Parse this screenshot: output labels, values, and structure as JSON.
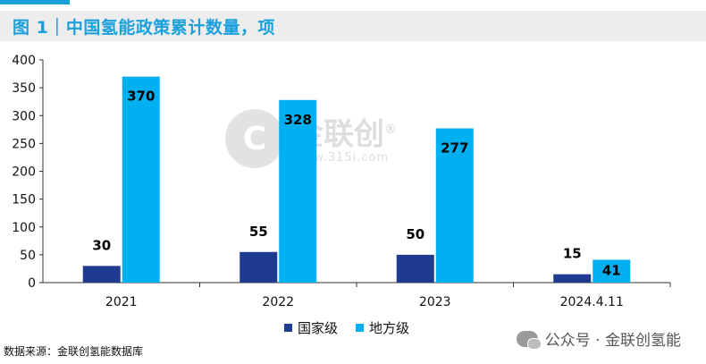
{
  "title": "图 1｜中国氢能政策累计数量，项",
  "source": "数据来源：金联创氢能数据库",
  "watermark": {
    "logo_glyph": "C",
    "name": "金联创",
    "registered": "®",
    "site": "www.315i.com"
  },
  "footer_account": "公众号 · 金联创氢能",
  "colors": {
    "accent": "#1aa0dc",
    "national": "#1f3b8f",
    "local": "#00b0f0"
  },
  "chart_data": {
    "type": "bar",
    "categories": [
      "2021",
      "2022",
      "2023",
      "2024.4.11"
    ],
    "series": [
      {
        "name": "国家级",
        "values": [
          30,
          55,
          50,
          15
        ],
        "color": "#1f3b8f"
      },
      {
        "name": "地方级",
        "values": [
          370,
          328,
          277,
          41
        ],
        "color": "#00b0f0"
      }
    ],
    "ylim": [
      0,
      400
    ],
    "yticks": [
      "0",
      "50",
      "100",
      "150",
      "200",
      "250",
      "300",
      "350",
      "400"
    ],
    "grid": false,
    "legend": "bottom"
  }
}
